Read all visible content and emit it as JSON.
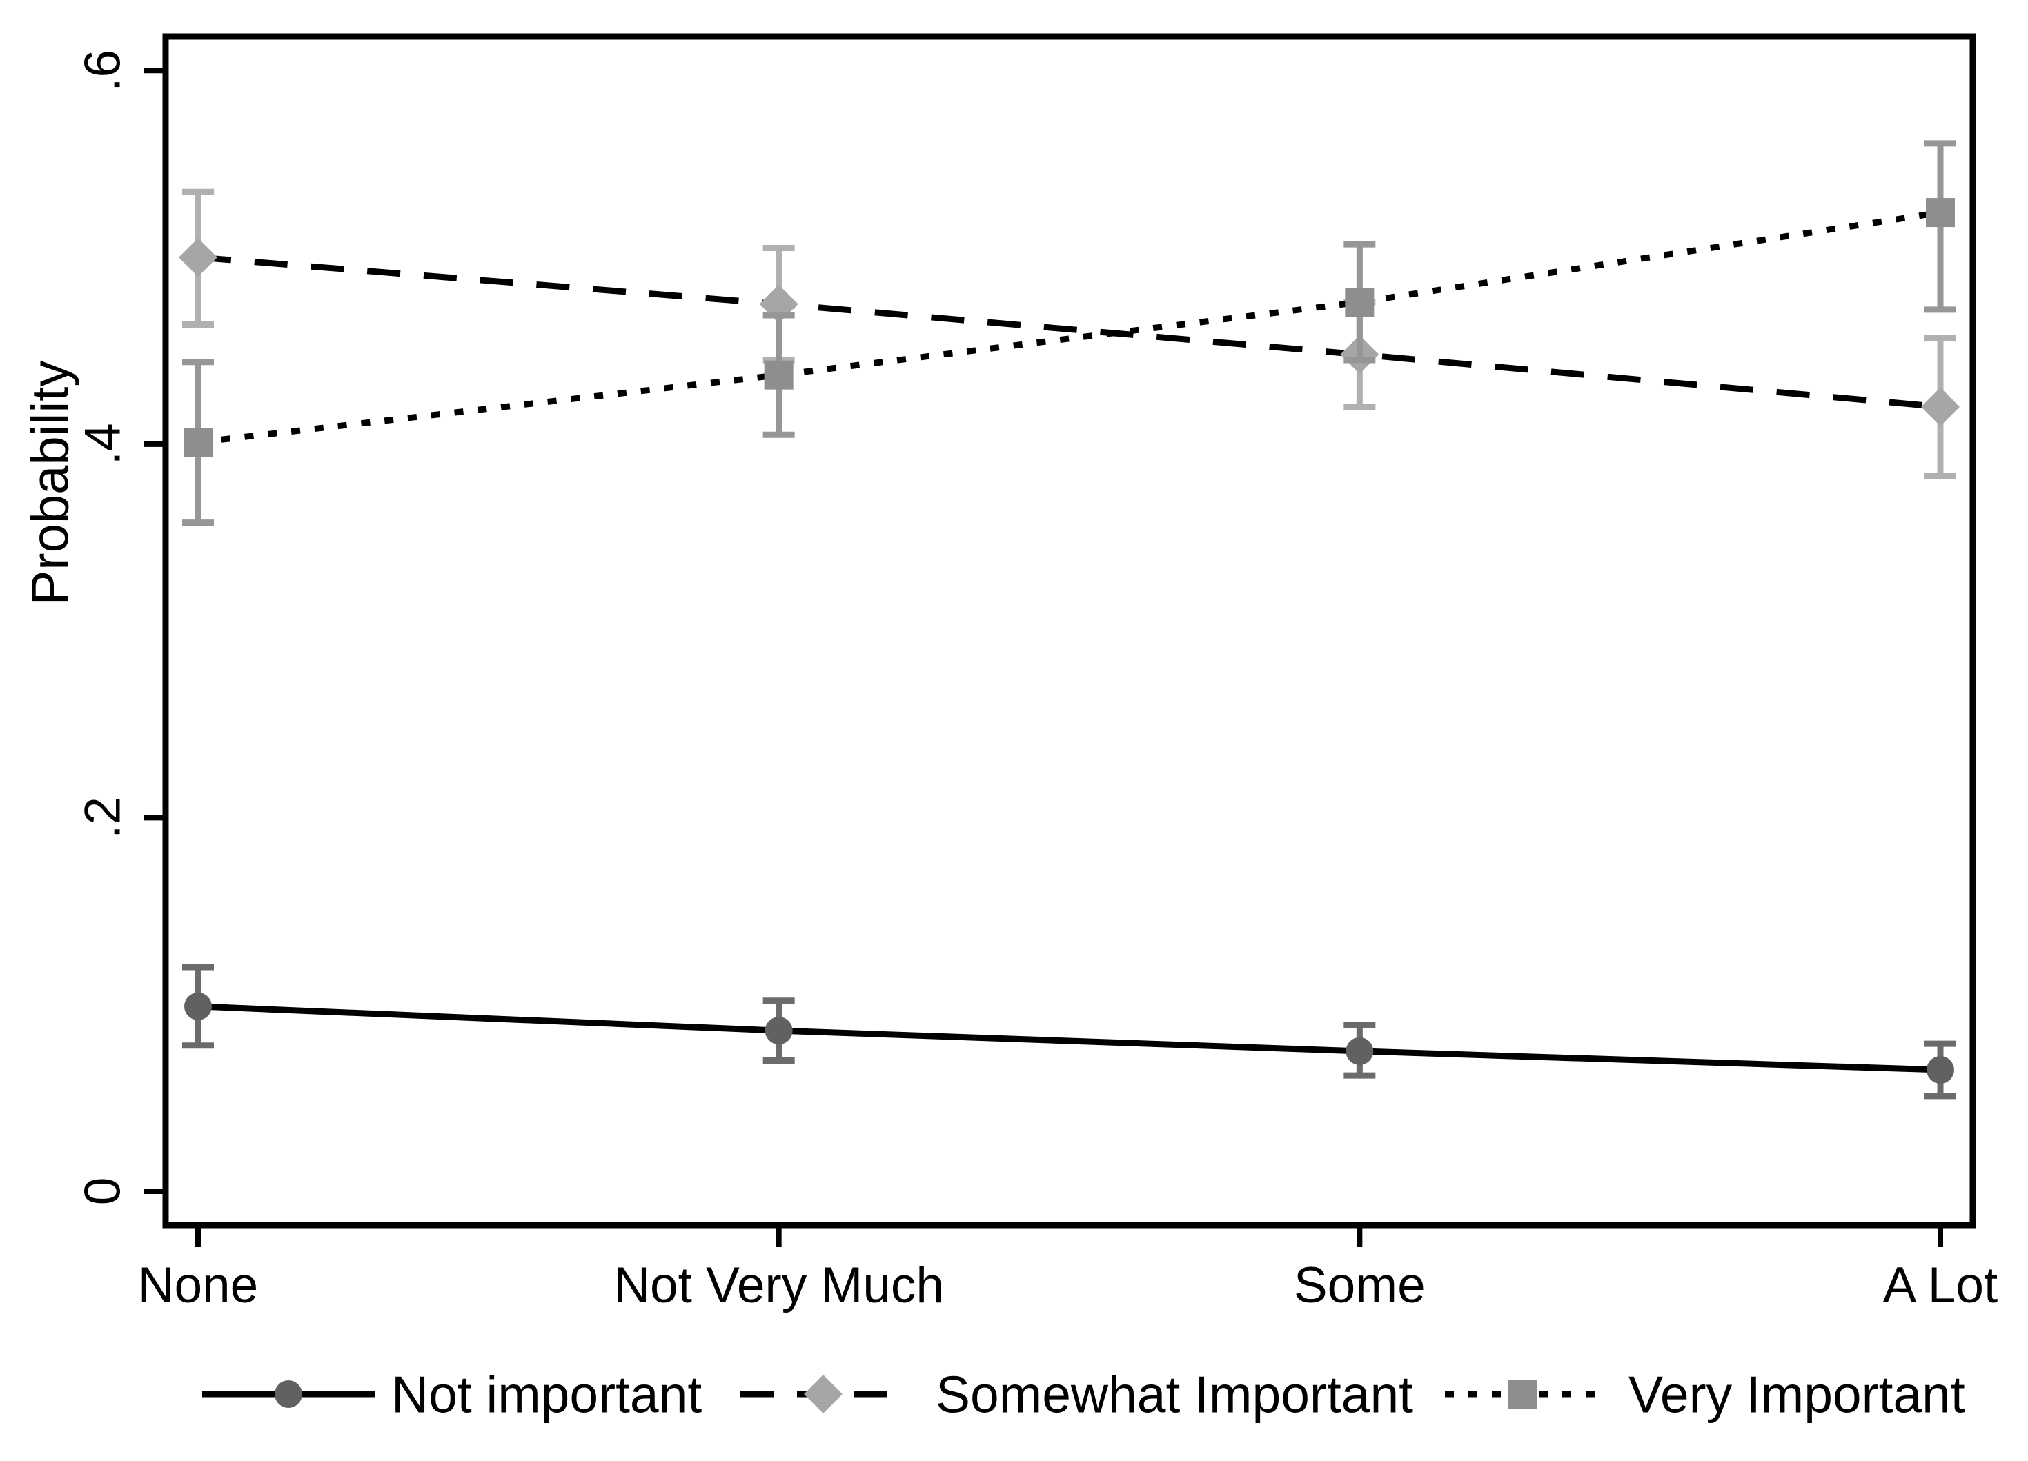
{
  "chart_data": {
    "type": "line",
    "title": "",
    "xlabel": "",
    "ylabel": "Probability",
    "categories": [
      "None",
      "Not Very Much",
      "Some",
      "A Lot"
    ],
    "yticks": {
      "values": [
        0,
        0.2,
        0.4,
        0.6
      ],
      "labels": [
        "0",
        ".2",
        ".4",
        ".6"
      ]
    },
    "ylim": [
      -0.0181,
      0.6182
    ],
    "grid": false,
    "legend_position": "bottom",
    "error_bars": true,
    "series": [
      {
        "name": "Not important",
        "marker": "circle",
        "line_style": "solid",
        "line_color": "#000000",
        "marker_color": "#616161",
        "errorbar_color": "#6b6b6b",
        "values": [
          0.099,
          0.086,
          0.075,
          0.065
        ],
        "ci_low": [
          0.078,
          0.07,
          0.062,
          0.051
        ],
        "ci_high": [
          0.12,
          0.102,
          0.089,
          0.079
        ]
      },
      {
        "name": "Somewhat Important",
        "marker": "diamond",
        "line_style": "dashed",
        "line_color": "#000000",
        "marker_color": "#a6a6a6",
        "errorbar_color": "#b0b0b0",
        "values": [
          0.5,
          0.475,
          0.448,
          0.42
        ],
        "ci_low": [
          0.464,
          0.445,
          0.42,
          0.383
        ],
        "ci_high": [
          0.535,
          0.505,
          0.476,
          0.457
        ]
      },
      {
        "name": "Very Important",
        "marker": "square",
        "line_style": "dotted",
        "line_color": "#000000",
        "marker_color": "#8e8e8e",
        "errorbar_color": "#969696",
        "values": [
          0.401,
          0.437,
          0.476,
          0.524
        ],
        "ci_low": [
          0.358,
          0.405,
          0.445,
          0.472
        ],
        "ci_high": [
          0.444,
          0.469,
          0.507,
          0.561
        ]
      }
    ],
    "axis_color": "#000000"
  }
}
